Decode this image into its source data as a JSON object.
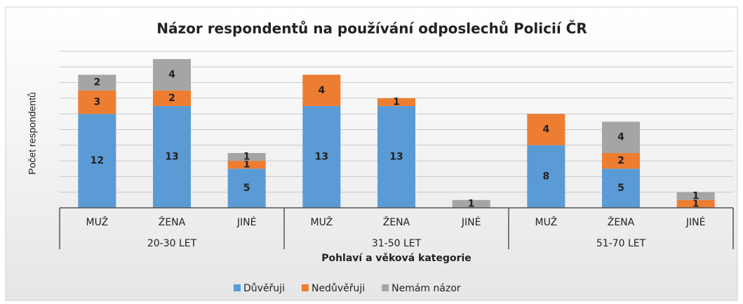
{
  "chart_data": {
    "type": "stacked_bar",
    "title": "Názor respondentů na používání odposlechů Policií ČR",
    "y_label": "Počet respondentů",
    "x_label": "Pohlaví a věková kategorie",
    "categories": [
      "MUŽ",
      "ŽENA",
      "JINÉ",
      "MUŽ",
      "ŽENA",
      "JINÉ",
      "MUŽ",
      "ŽENA",
      "JINÉ"
    ],
    "groups": [
      "20-30 LET",
      "31-50 LET",
      "51-70 LET"
    ],
    "series": [
      {
        "name": "Důvěřuji",
        "color": "#5b9bd5",
        "values": [
          12,
          13,
          5,
          13,
          13,
          null,
          8,
          5,
          null
        ]
      },
      {
        "name": "Nedůvěřuji",
        "color": "#ed7d31",
        "values": [
          3,
          2,
          1,
          4,
          1,
          null,
          4,
          2,
          1
        ]
      },
      {
        "name": "Nemám názor",
        "color": "#a5a5a5",
        "values": [
          2,
          4,
          1,
          null,
          null,
          1,
          null,
          4,
          1
        ]
      }
    ],
    "ylim": [
      0,
      20
    ],
    "yticks": [
      0,
      2,
      4,
      6,
      8,
      10,
      12,
      14,
      16,
      18,
      20
    ],
    "grid": true,
    "legend": "bottom"
  }
}
